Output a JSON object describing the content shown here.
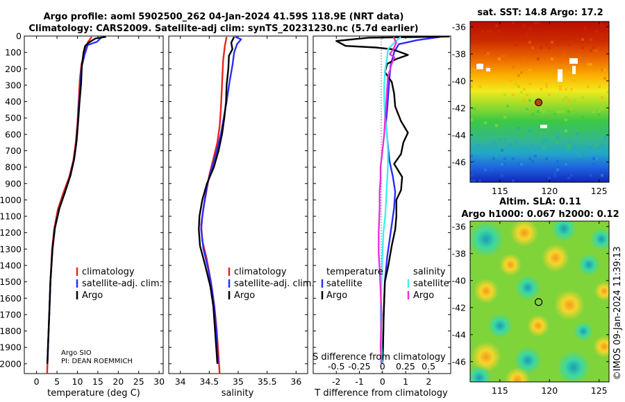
{
  "header": {
    "title_line1": "Argo profile: aoml 5902500_262 04-Jan-2024 41.59S 118.9E (NRT data)",
    "title_line2": "Climatology: CARS2009. Satellite-adj clim: synTS_20231230.nc (5.7d earlier)"
  },
  "colors": {
    "climatology": "#e8231f",
    "satellite": "#2b2bff",
    "argo": "#000000",
    "salinity_satellite": "#3ff0ee",
    "salinity_argo": "#e830d8",
    "float_marker": "#b8430f"
  },
  "info": {
    "institution": "Argo SIO",
    "pi": "PI: DEAN ROEMMICH"
  },
  "legend": {
    "climatology": "climatology",
    "satellite_adj": "satellite-adj. clim.",
    "argo": "Argo",
    "temperature_heading": "temperature",
    "salinity_heading": "salinity",
    "satellite": "satellite"
  },
  "maps": {
    "sst_title": "sat. SST: 14.8 Argo: 17.2",
    "sla_title_line1": "Altim. SLA: 0.11",
    "sla_title_line2": "Argo h1000: 0.067 h2000: 0.12",
    "float_lon": 118.9,
    "float_lat": -41.59,
    "lon_range": [
      112,
      126
    ],
    "lat_range": [
      -47.5,
      -35.6
    ],
    "lon_ticks": [
      "115",
      "120",
      "125"
    ],
    "lat_ticks": [
      "-36",
      "-38",
      "-40",
      "-42",
      "-44",
      "-46"
    ]
  },
  "watermark": "©IMOS 09-Jan-2024 11:39:13",
  "chart_data": [
    {
      "type": "line",
      "panel": "temperature",
      "xlabel": "temperature (deg C)",
      "ylabel": "",
      "xlim": [
        -3,
        31
      ],
      "ylim": [
        2060,
        0
      ],
      "xticks": [
        "0",
        "5",
        "10",
        "15",
        "20",
        "25",
        "30"
      ],
      "xtick_values": [
        0,
        5,
        10,
        15,
        20,
        25,
        30
      ],
      "yticks": [
        "0",
        "100",
        "200",
        "300",
        "400",
        "500",
        "600",
        "700",
        "800",
        "900",
        "1000",
        "1100",
        "1200",
        "1300",
        "1400",
        "1500",
        "1600",
        "1700",
        "1800",
        "1900",
        "2000"
      ],
      "ytick_values": [
        0,
        100,
        200,
        300,
        400,
        500,
        600,
        700,
        800,
        900,
        1000,
        1100,
        1200,
        1300,
        1400,
        1500,
        1600,
        1700,
        1800,
        1900,
        2000
      ],
      "series": [
        {
          "name": "climatology",
          "points": [
            [
              13.5,
              5
            ],
            [
              12.5,
              40
            ],
            [
              11.8,
              100
            ],
            [
              11,
              170
            ],
            [
              10.6,
              260
            ],
            [
              10.3,
              400
            ],
            [
              10,
              530
            ],
            [
              9.6,
              650
            ],
            [
              9,
              760
            ],
            [
              8,
              860
            ],
            [
              6.5,
              960
            ],
            [
              5.2,
              1060
            ],
            [
              4.3,
              1180
            ],
            [
              3.8,
              1300
            ],
            [
              3.4,
              1500
            ],
            [
              3.1,
              1700
            ],
            [
              2.8,
              1900
            ],
            [
              2.6,
              2060
            ]
          ]
        },
        {
          "name": "satellite-adj. clim.",
          "points": [
            [
              16,
              5
            ],
            [
              14.8,
              35
            ],
            [
              12.5,
              55
            ],
            [
              11.8,
              110
            ],
            [
              11,
              190
            ],
            [
              10.7,
              300
            ],
            [
              10.4,
              420
            ],
            [
              10.1,
              530
            ],
            [
              9.8,
              640
            ],
            [
              9.2,
              750
            ],
            [
              8.3,
              850
            ],
            [
              7,
              950
            ],
            [
              5.6,
              1050
            ],
            [
              4.5,
              1170
            ],
            [
              3.9,
              1300
            ],
            [
              3.4,
              1500
            ],
            [
              3.1,
              1700
            ],
            [
              2.8,
              1900
            ],
            [
              2.65,
              2000
            ]
          ]
        },
        {
          "name": "Argo",
          "points": [
            [
              17,
              5
            ],
            [
              14.4,
              15
            ],
            [
              12.8,
              40
            ],
            [
              11.9,
              60
            ],
            [
              11.5,
              100
            ],
            [
              11.1,
              180
            ],
            [
              10.9,
              290
            ],
            [
              10.5,
              410
            ],
            [
              10.2,
              520
            ],
            [
              9.8,
              640
            ],
            [
              9.2,
              750
            ],
            [
              8.3,
              850
            ],
            [
              7,
              950
            ],
            [
              5.6,
              1050
            ],
            [
              4.5,
              1170
            ],
            [
              3.9,
              1300
            ],
            [
              3.4,
              1500
            ],
            [
              3.1,
              1700
            ],
            [
              2.8,
              1900
            ],
            [
              2.65,
              2000
            ]
          ]
        }
      ]
    },
    {
      "type": "line",
      "panel": "salinity",
      "xlabel": "salinity",
      "ylabel": "",
      "xlim": [
        33.8,
        36.2
      ],
      "ylim": [
        2060,
        0
      ],
      "xticks": [
        "34",
        "34.5",
        "35",
        "35.5",
        "36"
      ],
      "xtick_values": [
        34,
        34.5,
        35,
        35.5,
        36
      ],
      "series": [
        {
          "name": "climatology",
          "points": [
            [
              34.8,
              5
            ],
            [
              34.77,
              60
            ],
            [
              34.74,
              150
            ],
            [
              34.72,
              300
            ],
            [
              34.7,
              450
            ],
            [
              34.68,
              550
            ],
            [
              34.64,
              650
            ],
            [
              34.57,
              750
            ],
            [
              34.5,
              850
            ],
            [
              34.45,
              950
            ],
            [
              34.4,
              1050
            ],
            [
              34.36,
              1150
            ],
            [
              34.38,
              1250
            ],
            [
              34.45,
              1350
            ],
            [
              34.53,
              1500
            ],
            [
              34.59,
              1650
            ],
            [
              34.63,
              1800
            ],
            [
              34.66,
              1950
            ],
            [
              34.68,
              2060
            ]
          ]
        },
        {
          "name": "satellite-adj. clim.",
          "points": [
            [
              34.95,
              5
            ],
            [
              35.05,
              20
            ],
            [
              34.98,
              50
            ],
            [
              34.93,
              100
            ],
            [
              34.9,
              180
            ],
            [
              34.85,
              280
            ],
            [
              34.8,
              400
            ],
            [
              34.75,
              500
            ],
            [
              34.7,
              600
            ],
            [
              34.63,
              700
            ],
            [
              34.55,
              800
            ],
            [
              34.47,
              900
            ],
            [
              34.42,
              1000
            ],
            [
              34.38,
              1100
            ],
            [
              34.36,
              1180
            ],
            [
              34.4,
              1300
            ],
            [
              34.48,
              1420
            ],
            [
              34.55,
              1550
            ],
            [
              34.6,
              1700
            ],
            [
              34.63,
              1850
            ],
            [
              34.65,
              2000
            ]
          ]
        },
        {
          "name": "Argo",
          "points": [
            [
              34.93,
              5
            ],
            [
              34.88,
              40
            ],
            [
              34.9,
              80
            ],
            [
              34.84,
              120
            ],
            [
              34.83,
              200
            ],
            [
              34.8,
              300
            ],
            [
              34.79,
              400
            ],
            [
              34.76,
              500
            ],
            [
              34.72,
              600
            ],
            [
              34.66,
              700
            ],
            [
              34.58,
              800
            ],
            [
              34.46,
              900
            ],
            [
              34.38,
              1000
            ],
            [
              34.33,
              1100
            ],
            [
              34.32,
              1180
            ],
            [
              34.34,
              1280
            ],
            [
              34.43,
              1400
            ],
            [
              34.52,
              1530
            ],
            [
              34.57,
              1650
            ],
            [
              34.6,
              1800
            ],
            [
              34.63,
              1950
            ],
            [
              34.64,
              2000
            ]
          ]
        }
      ]
    },
    {
      "type": "line",
      "panel": "difference",
      "xlabel": "T difference from climatology",
      "xlabel_top": "S difference from climatology",
      "xlim": [
        -3,
        2.95
      ],
      "ylim": [
        2060,
        0
      ],
      "xticks": [
        "-2",
        "-1",
        "0",
        "1",
        "2"
      ],
      "xtick_values": [
        -2,
        -1,
        0,
        1,
        2
      ],
      "top_axis_xlim": [
        -0.75,
        0.74
      ],
      "top_ticks": [
        "-0.5",
        "-0.25",
        "0",
        "0.25",
        "0.5"
      ],
      "top_tick_values": [
        -0.5,
        -0.25,
        0,
        0.25,
        0.5
      ],
      "series": [
        {
          "name": "temperature satellite",
          "axis": "T",
          "points": [
            [
              2.5,
              5
            ],
            [
              1.5,
              25
            ],
            [
              0.7,
              50
            ],
            [
              0.5,
              100
            ],
            [
              0.35,
              180
            ],
            [
              0.3,
              260
            ],
            [
              0.25,
              350
            ],
            [
              0.2,
              450
            ],
            [
              0.15,
              530
            ],
            [
              0.22,
              650
            ],
            [
              0.3,
              760
            ],
            [
              0.45,
              860
            ],
            [
              0.55,
              950
            ],
            [
              0.5,
              1050
            ],
            [
              0.35,
              1200
            ],
            [
              0.2,
              1350
            ],
            [
              0.1,
              1500
            ],
            [
              0.05,
              1700
            ],
            [
              0.02,
              1900
            ],
            [
              0,
              2000
            ]
          ]
        },
        {
          "name": "temperature Argo",
          "axis": "T",
          "points": [
            [
              2.9,
              3
            ],
            [
              -0.6,
              10
            ],
            [
              -2,
              30
            ],
            [
              -1.6,
              60
            ],
            [
              -0.3,
              70
            ],
            [
              0.4,
              80
            ],
            [
              0.8,
              100
            ],
            [
              1.1,
              115
            ],
            [
              0.6,
              140
            ],
            [
              0.2,
              170
            ],
            [
              0.1,
              220
            ],
            [
              0.4,
              280
            ],
            [
              0.5,
              350
            ],
            [
              0.55,
              430
            ],
            [
              0.8,
              520
            ],
            [
              1.1,
              590
            ],
            [
              0.9,
              650
            ],
            [
              0.8,
              720
            ],
            [
              0.5,
              780
            ],
            [
              0.85,
              860
            ],
            [
              0.8,
              940
            ],
            [
              0.6,
              1000
            ],
            [
              0.6,
              1100
            ],
            [
              0.55,
              1180
            ],
            [
              0.4,
              1280
            ],
            [
              0.25,
              1400
            ],
            [
              0.1,
              1500
            ],
            [
              0.05,
              1700
            ],
            [
              0.02,
              1900
            ],
            [
              0,
              2000
            ]
          ]
        },
        {
          "name": "salinity satellite",
          "axis": "S",
          "points": [
            [
              0.2,
              5
            ],
            [
              0.13,
              40
            ],
            [
              0.06,
              80
            ],
            [
              0.05,
              140
            ],
            [
              0.03,
              200
            ],
            [
              0.02,
              300
            ],
            [
              0.02,
              400
            ],
            [
              0.03,
              500
            ],
            [
              0.05,
              600
            ],
            [
              0.06,
              700
            ],
            [
              0.06,
              800
            ],
            [
              0.05,
              900
            ],
            [
              0.04,
              1000
            ],
            [
              0.03,
              1100
            ],
            [
              0.01,
              1200
            ],
            [
              0,
              1350
            ],
            [
              -0.01,
              1500
            ],
            [
              -0.02,
              1700
            ],
            [
              -0.01,
              1900
            ],
            [
              0,
              2000
            ]
          ]
        },
        {
          "name": "salinity Argo",
          "axis": "S",
          "points": [
            [
              0.12,
              5
            ],
            [
              0.15,
              40
            ],
            [
              0.12,
              80
            ],
            [
              0.08,
              110
            ],
            [
              0.13,
              130
            ],
            [
              0.1,
              170
            ],
            [
              0.06,
              250
            ],
            [
              0.05,
              330
            ],
            [
              0.04,
              420
            ],
            [
              0.03,
              500
            ],
            [
              0.02,
              600
            ],
            [
              0,
              700
            ],
            [
              -0.02,
              800
            ],
            [
              -0.02,
              870
            ],
            [
              -0.03,
              950
            ],
            [
              -0.03,
              1050
            ],
            [
              -0.04,
              1200
            ],
            [
              -0.04,
              1320
            ],
            [
              -0.03,
              1420
            ],
            [
              -0.02,
              1550
            ],
            [
              -0.01,
              1700
            ],
            [
              -0.02,
              1900
            ],
            [
              -0.01,
              2000
            ]
          ]
        }
      ]
    }
  ]
}
